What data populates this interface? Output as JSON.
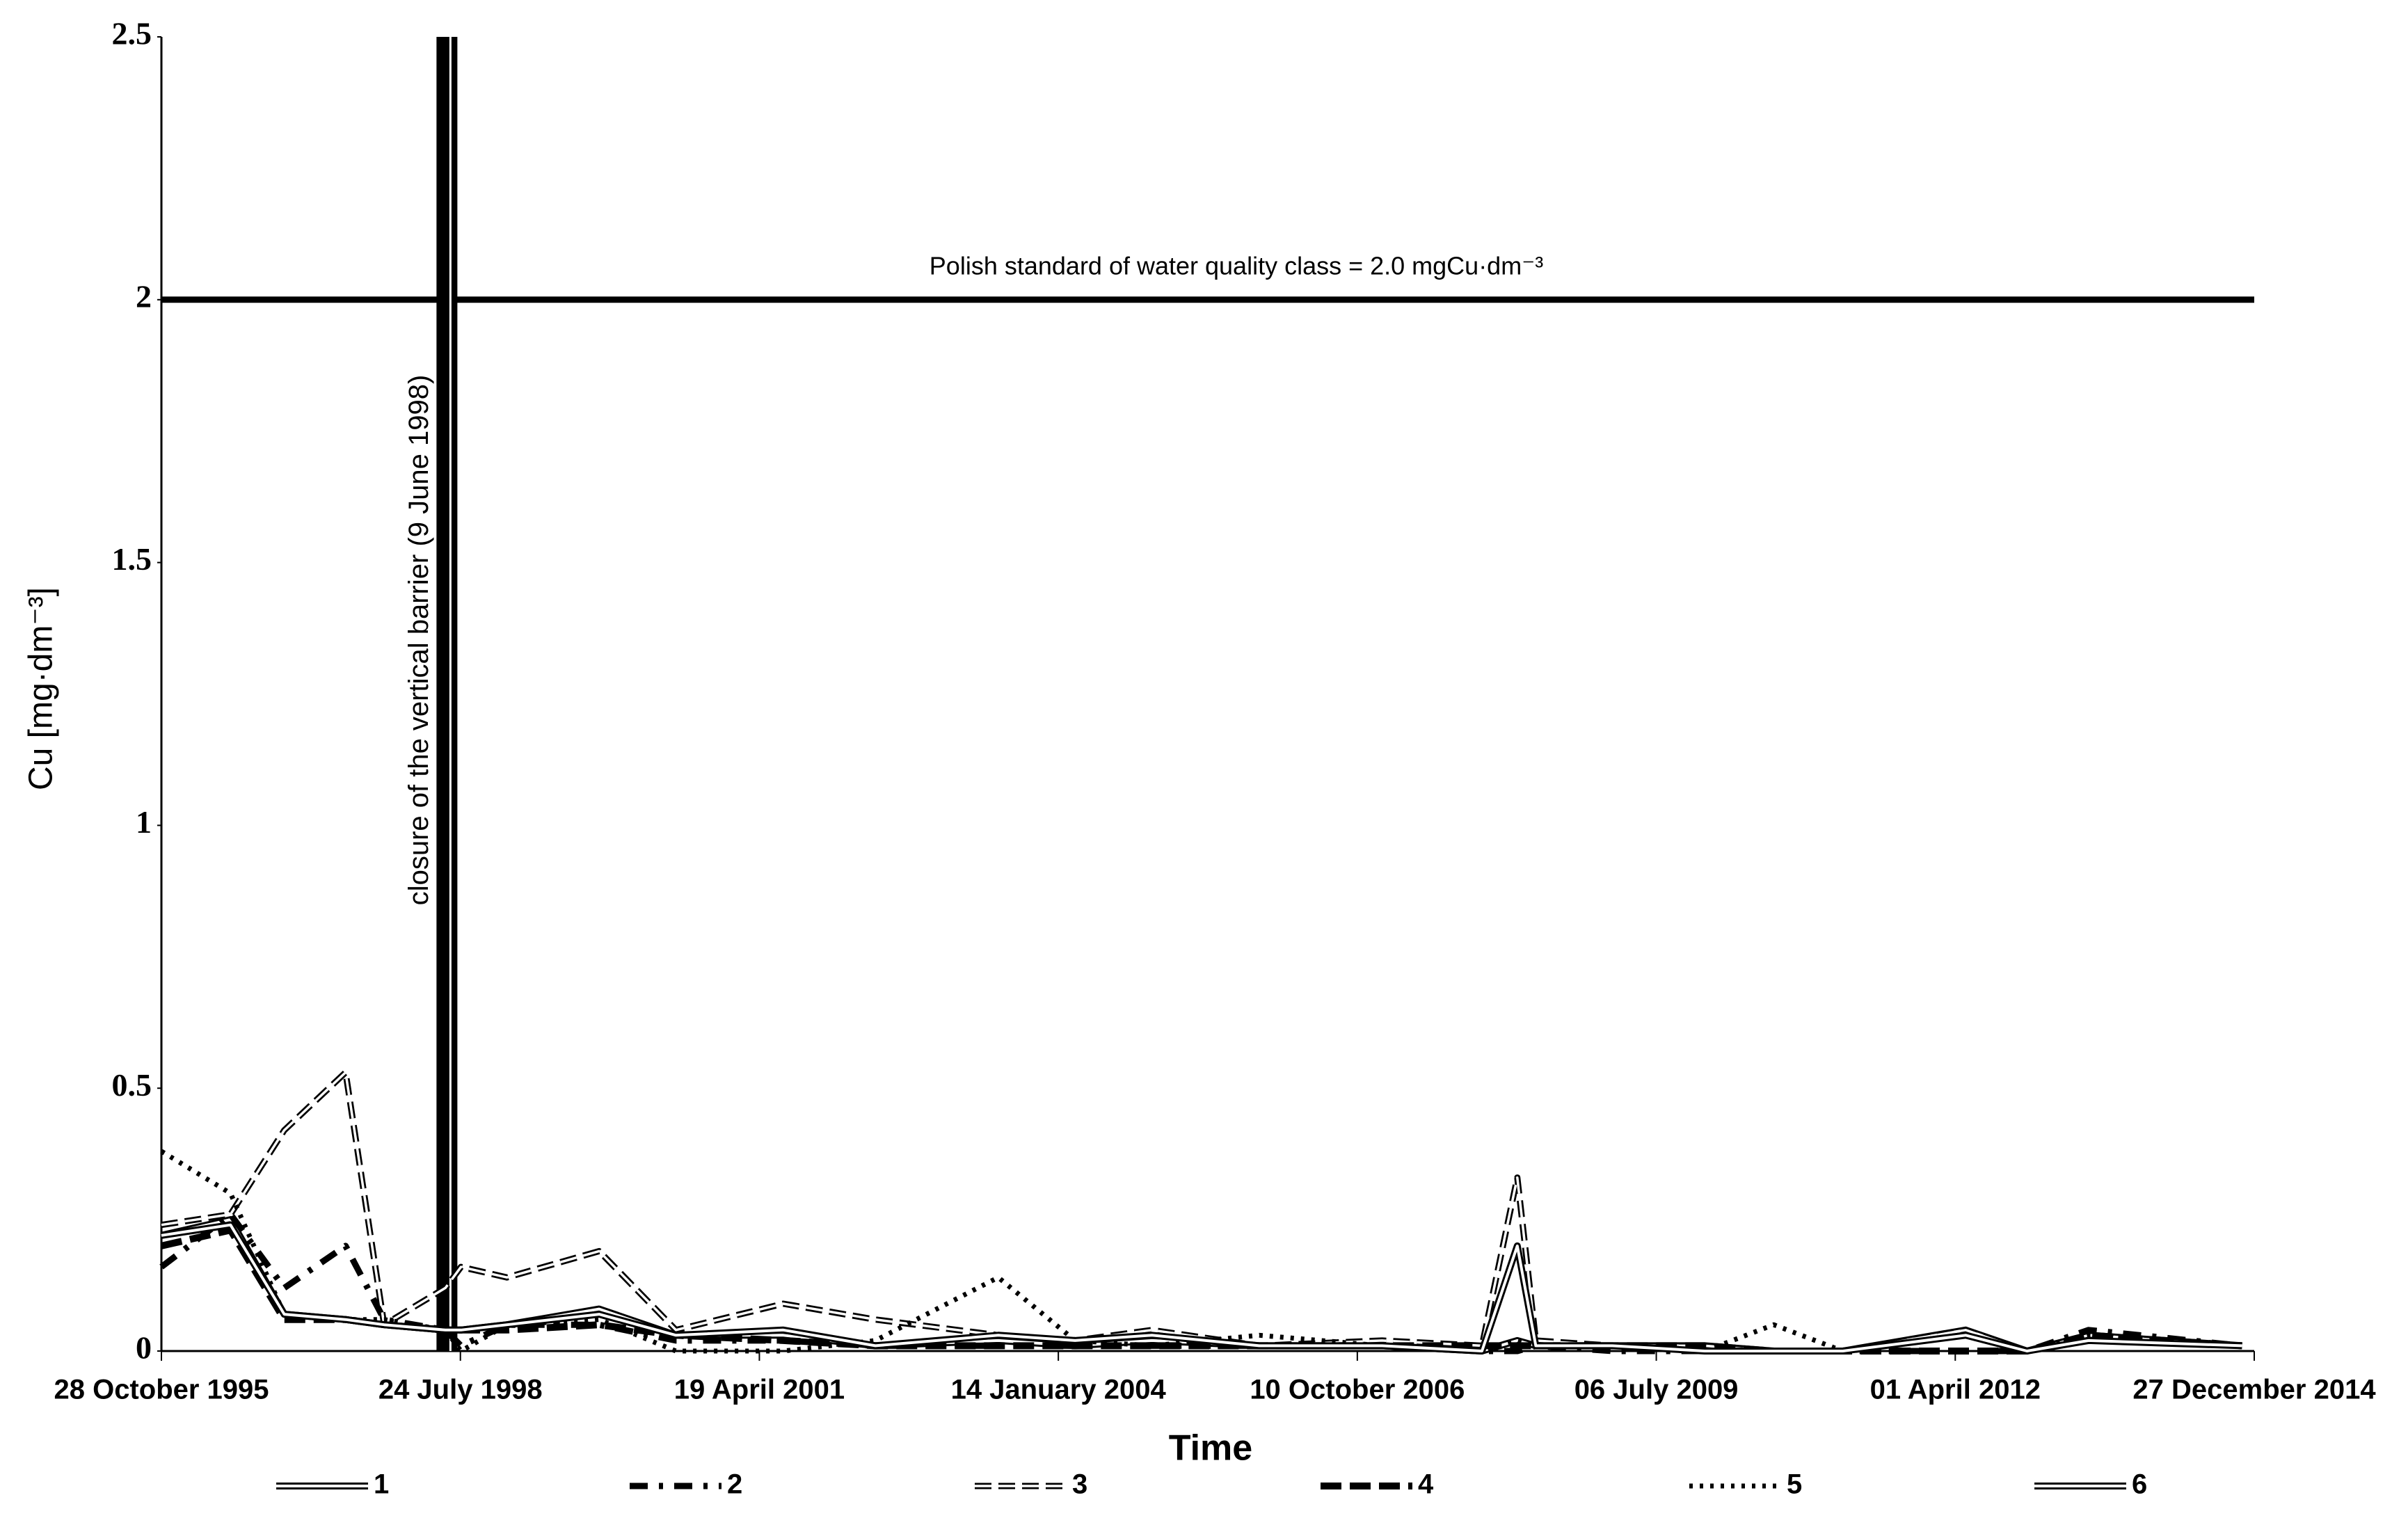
{
  "chart_data": {
    "type": "line",
    "y_label": "Cu [mg·dm⁻³]",
    "x_label": "Time",
    "xlim": [
      "1995-10-28",
      "2014-12-27"
    ],
    "xticks": [
      {
        "value": "1995-10-28",
        "label": "28 October 1995"
      },
      {
        "value": "1998-07-24",
        "label": "24 July 1998"
      },
      {
        "value": "2001-04-19",
        "label": "19 April 2001"
      },
      {
        "value": "2004-01-14",
        "label": "14 January 2004"
      },
      {
        "value": "2006-10-10",
        "label": "10 October 2006"
      },
      {
        "value": "2009-07-06",
        "label": "06 July 2009"
      },
      {
        "value": "2012-04-01",
        "label": "01 April 2012"
      },
      {
        "value": "2014-12-27",
        "label": "27 December 2014"
      }
    ],
    "ylim": [
      0,
      2.5
    ],
    "yticks": [
      0,
      0.5,
      1,
      1.5,
      2,
      2.5
    ],
    "reference_line": {
      "value": 2,
      "label": "Polish standard of water quality class = 2.0 mgCu·dm⁻³"
    },
    "event_line": {
      "x": "1998-06-09",
      "label": "closure of the vertical barrier (9 June 1998)"
    },
    "x": [
      "1995-10-28",
      "1996-06-15",
      "1996-12-12",
      "1997-07-05",
      "1997-11-11",
      "1998-06-04",
      "1998-07-26",
      "1998-12-27",
      "1999-10-31",
      "2000-07-14",
      "2001-07-08",
      "2002-05-12",
      "2003-06-27",
      "2004-03-10",
      "2004-11-22",
      "2005-11-16",
      "2007-01-01",
      "2007-12-01",
      "2008-03-28",
      "2008-05-29",
      "2009-02-09",
      "2009-12-15",
      "2010-08-03",
      "2011-03-22",
      "2012-05-06",
      "2012-11-27",
      "2013-06-21",
      "2014-11-16"
    ],
    "series": [
      {
        "name": "1",
        "color": "#000000",
        "line_style": "double",
        "values": [
          0.22,
          0.25,
          0.07,
          0.06,
          0.05,
          0.04,
          0.04,
          0.05,
          0.08,
          0.03,
          0.03,
          0.01,
          0.02,
          0.01,
          0.02,
          0.01,
          0.01,
          0.0,
          0.02,
          0.01,
          0.01,
          0.01,
          0.0,
          0.0,
          0.04,
          0.0,
          0.03,
          0.01
        ]
      },
      {
        "name": "2",
        "color": "#000000",
        "line_style": "dash-dot",
        "values": [
          0.16,
          0.26,
          0.12,
          0.2,
          0.06,
          0.04,
          0.01,
          0.05,
          0.05,
          0.02,
          0.02,
          0.01,
          0.01,
          0.01,
          0.01,
          0.01,
          0.01,
          0.0,
          0.0,
          0.01,
          0.0,
          0.0,
          0.0,
          0.0,
          0.0,
          0.0,
          0.04,
          0.01
        ]
      },
      {
        "name": "3",
        "color": "#000000",
        "line_style": "dashed-double",
        "values": [
          0.24,
          0.26,
          0.42,
          0.53,
          0.05,
          0.12,
          0.16,
          0.14,
          0.19,
          0.04,
          0.09,
          0.06,
          0.03,
          0.02,
          0.04,
          0.01,
          0.02,
          0.01,
          0.33,
          0.02,
          0.01,
          0.01,
          0.0,
          0.0,
          0.04,
          0.0,
          0.03,
          0.01
        ]
      },
      {
        "name": "4",
        "color": "#000000",
        "line_style": "dashed",
        "values": [
          0.2,
          0.23,
          0.06,
          0.06,
          0.05,
          0.04,
          0.04,
          0.04,
          0.05,
          0.03,
          0.02,
          0.01,
          0.01,
          0.01,
          0.01,
          0.01,
          0.01,
          0.01,
          0.01,
          0.01,
          0.01,
          0.01,
          0.0,
          0.0,
          0.0,
          0.0,
          0.03,
          0.01
        ]
      },
      {
        "name": "5",
        "color": "#000000",
        "line_style": "dotted",
        "values": [
          0.38,
          0.3,
          0.07,
          0.06,
          0.06,
          0.04,
          0.0,
          0.05,
          0.06,
          0.0,
          0.0,
          0.02,
          0.14,
          0.02,
          0.01,
          0.03,
          0.01,
          0.0,
          0.02,
          0.01,
          0.01,
          0.0,
          0.05,
          0.0,
          0.03,
          0.0,
          0.03,
          0.01
        ]
      },
      {
        "name": "6",
        "color": "#000000",
        "line_style": "double",
        "values": [
          0.22,
          0.24,
          0.07,
          0.06,
          0.05,
          0.04,
          0.04,
          0.05,
          0.07,
          0.03,
          0.04,
          0.01,
          0.03,
          0.02,
          0.03,
          0.01,
          0.01,
          0.0,
          0.2,
          0.01,
          0.01,
          0.0,
          0.0,
          0.0,
          0.03,
          0.0,
          0.02,
          0.01
        ]
      }
    ]
  }
}
